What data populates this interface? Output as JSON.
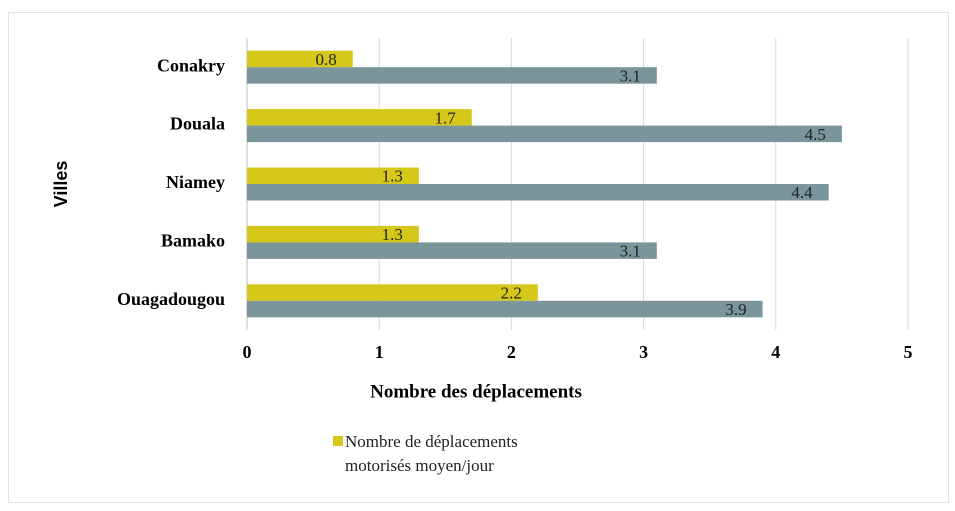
{
  "chart_data": {
    "type": "barh",
    "xlabel": "Nombre des déplacements",
    "ylabel": "Villes",
    "categories": [
      "Conakry",
      "Douala",
      "Niamey",
      "Bamako",
      "Ouagadougou"
    ],
    "series": [
      {
        "name": "Nombre de déplacements motorisés moyen/jour",
        "color": "#d6c81a",
        "values": [
          0.8,
          1.7,
          1.3,
          1.3,
          2.2
        ]
      },
      {
        "color": "#7a959c",
        "values": [
          3.1,
          4.5,
          4.4,
          3.1,
          3.9
        ]
      }
    ],
    "xlim": [
      0,
      5
    ],
    "xticks": [
      0,
      1,
      2,
      3,
      4,
      5
    ],
    "grid": true
  }
}
